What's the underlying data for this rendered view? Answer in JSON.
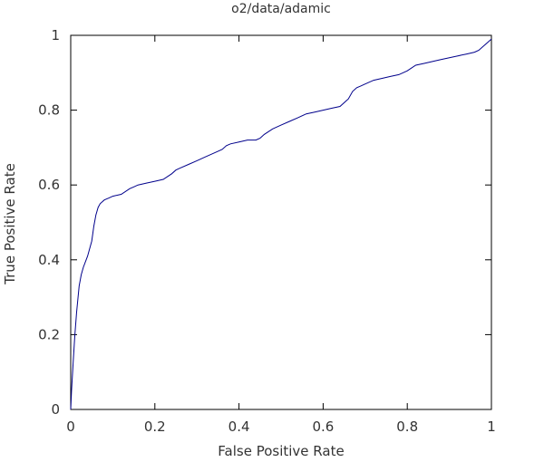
{
  "chart_data": {
    "type": "line",
    "title": "o2/data/adamic",
    "xlabel": "False Positive Rate",
    "ylabel": "True Positive Rate",
    "xlim": [
      0,
      1
    ],
    "ylim": [
      0,
      1
    ],
    "xticks": [
      "0",
      "0.2",
      "0.4",
      "0.6",
      "0.8",
      "1"
    ],
    "yticks": [
      "0",
      "0.2",
      "0.4",
      "0.6",
      "0.8",
      "1"
    ],
    "grid": false,
    "legend": "none",
    "series": [
      {
        "color": "#00008b",
        "x": [
          0.0,
          0.002,
          0.006,
          0.01,
          0.014,
          0.02,
          0.025,
          0.03,
          0.04,
          0.05,
          0.055,
          0.06,
          0.065,
          0.07,
          0.075,
          0.08,
          0.09,
          0.1,
          0.12,
          0.14,
          0.15,
          0.16,
          0.18,
          0.2,
          0.22,
          0.24,
          0.25,
          0.26,
          0.28,
          0.3,
          0.32,
          0.34,
          0.36,
          0.37,
          0.38,
          0.4,
          0.42,
          0.44,
          0.45,
          0.46,
          0.48,
          0.5,
          0.52,
          0.54,
          0.56,
          0.58,
          0.6,
          0.62,
          0.64,
          0.66,
          0.67,
          0.68,
          0.69,
          0.7,
          0.72,
          0.74,
          0.76,
          0.78,
          0.8,
          0.82,
          0.84,
          0.86,
          0.88,
          0.9,
          0.92,
          0.94,
          0.96,
          0.97,
          0.98,
          0.99,
          1.0
        ],
        "y": [
          0.0,
          0.05,
          0.13,
          0.2,
          0.26,
          0.33,
          0.36,
          0.38,
          0.41,
          0.45,
          0.49,
          0.52,
          0.54,
          0.55,
          0.555,
          0.56,
          0.565,
          0.57,
          0.575,
          0.59,
          0.595,
          0.6,
          0.605,
          0.61,
          0.615,
          0.63,
          0.64,
          0.645,
          0.655,
          0.665,
          0.675,
          0.685,
          0.695,
          0.705,
          0.71,
          0.715,
          0.72,
          0.72,
          0.725,
          0.735,
          0.75,
          0.76,
          0.77,
          0.78,
          0.79,
          0.795,
          0.8,
          0.805,
          0.81,
          0.83,
          0.85,
          0.86,
          0.865,
          0.87,
          0.88,
          0.885,
          0.89,
          0.895,
          0.905,
          0.92,
          0.925,
          0.93,
          0.935,
          0.94,
          0.945,
          0.95,
          0.955,
          0.96,
          0.97,
          0.98,
          0.99
        ]
      }
    ]
  }
}
